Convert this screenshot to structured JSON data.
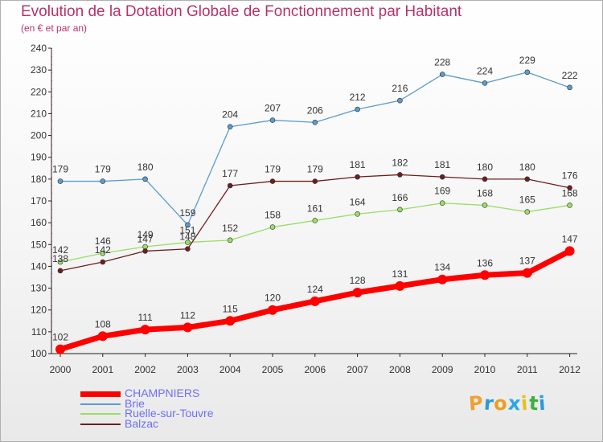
{
  "title": "Evolution de la Dotation Globale de Fonctionnement par Habitant",
  "subtitle": "(en € et par an)",
  "logo": {
    "text": "Proxiti",
    "colors": [
      "#f0a030",
      "#2a9ad8",
      "#e8a020",
      "#2aa8e0",
      "#e8c020",
      "#3ab040",
      "#2a9ad8"
    ]
  },
  "chart_data": {
    "type": "line",
    "title": "Evolution de la Dotation Globale de Fonctionnement par Habitant",
    "subtitle": "(en € et par an)",
    "xlabel": "",
    "ylabel": "",
    "x": [
      2000,
      2001,
      2002,
      2003,
      2004,
      2005,
      2006,
      2007,
      2008,
      2009,
      2010,
      2011,
      2012
    ],
    "ylim": [
      100,
      240
    ],
    "yticks": [
      100,
      110,
      120,
      130,
      140,
      150,
      160,
      170,
      180,
      190,
      200,
      210,
      220,
      230,
      240
    ],
    "grid": false,
    "legend_position": "bottom-left",
    "series": [
      {
        "name": "CHAMPNIERS",
        "color": "#ff0000",
        "values": [
          102,
          108,
          111,
          112,
          115,
          120,
          124,
          128,
          131,
          134,
          136,
          137,
          147
        ]
      },
      {
        "name": "Brie",
        "color": "#5b9bd0",
        "values": [
          179,
          179,
          180,
          159,
          204,
          207,
          206,
          212,
          216,
          228,
          224,
          229,
          222
        ]
      },
      {
        "name": "Ruelle-sur-Touvre",
        "color": "#99dd66",
        "values": [
          142,
          146,
          149,
          151,
          152,
          158,
          161,
          164,
          166,
          169,
          168,
          165,
          168
        ]
      },
      {
        "name": "Balzac",
        "color": "#6b1f1f",
        "values": [
          138,
          142,
          147,
          148,
          177,
          179,
          179,
          181,
          182,
          181,
          180,
          180,
          176
        ]
      }
    ]
  }
}
